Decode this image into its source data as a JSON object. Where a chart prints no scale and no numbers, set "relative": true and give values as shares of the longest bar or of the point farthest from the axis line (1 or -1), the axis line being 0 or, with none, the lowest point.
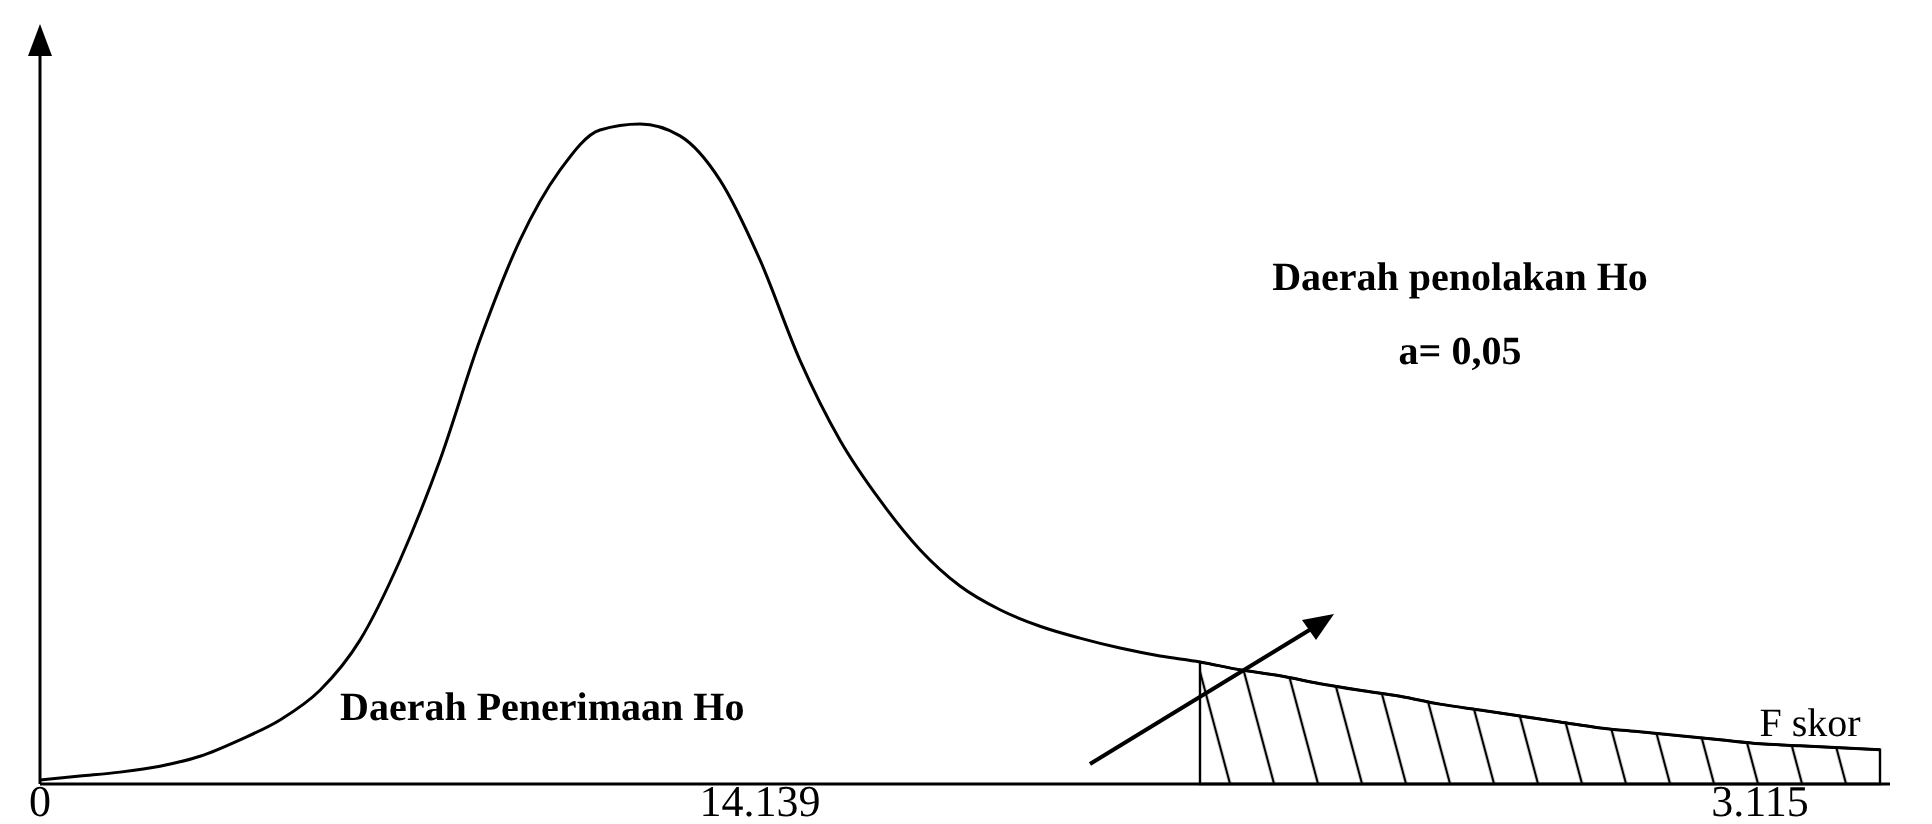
{
  "chart_data": {
    "type": "line",
    "relative": true,
    "xlabel": "F skor",
    "categories": [
      "0",
      null,
      null,
      null,
      null,
      null,
      null,
      null,
      null,
      null,
      null,
      null,
      null,
      null,
      null,
      null,
      null,
      null,
      "14.139",
      null,
      null,
      null,
      null,
      null,
      null,
      null,
      null,
      null,
      null,
      null,
      null,
      null,
      null,
      null,
      null,
      null,
      null,
      null,
      null,
      null,
      null,
      null,
      null,
      "3.115",
      null,
      null,
      null
    ],
    "series": [
      {
        "color": "#000000",
        "values": [
          0.006,
          0.012,
          0.018,
          0.027,
          0.042,
          0.067,
          0.097,
          0.142,
          0.218,
          0.339,
          0.491,
          0.673,
          0.824,
          0.93,
          0.991,
          1,
          0.982,
          0.915,
          0.794,
          0.642,
          0.521,
          0.43,
          0.355,
          0.3,
          0.264,
          0.239,
          0.221,
          0.206,
          0.194,
          0.185,
          0.173,
          0.164,
          0.152,
          0.142,
          0.133,
          0.121,
          0.112,
          0.103,
          0.094,
          0.085,
          0.079,
          0.073,
          0.067,
          0.061,
          0.058,
          0.055,
          0.052
        ]
      },
      {
        "type": "area",
        "color": "#000000",
        "values": [
          null,
          null,
          null,
          null,
          null,
          null,
          null,
          null,
          null,
          null,
          null,
          null,
          null,
          null,
          null,
          null,
          null,
          null,
          null,
          null,
          null,
          null,
          null,
          null,
          null,
          null,
          null,
          null,
          null,
          0.185,
          0.173,
          0.164,
          0.152,
          0.142,
          0.133,
          0.121,
          0.112,
          0.103,
          0.094,
          0.085,
          0.079,
          0.073,
          0.067,
          0.061,
          0.058,
          0.055,
          0.052
        ]
      }
    ],
    "annotations": [
      "Daerah Penerimaan Ho",
      "Daerah penolakan Ho",
      "a= 0,05"
    ]
  }
}
